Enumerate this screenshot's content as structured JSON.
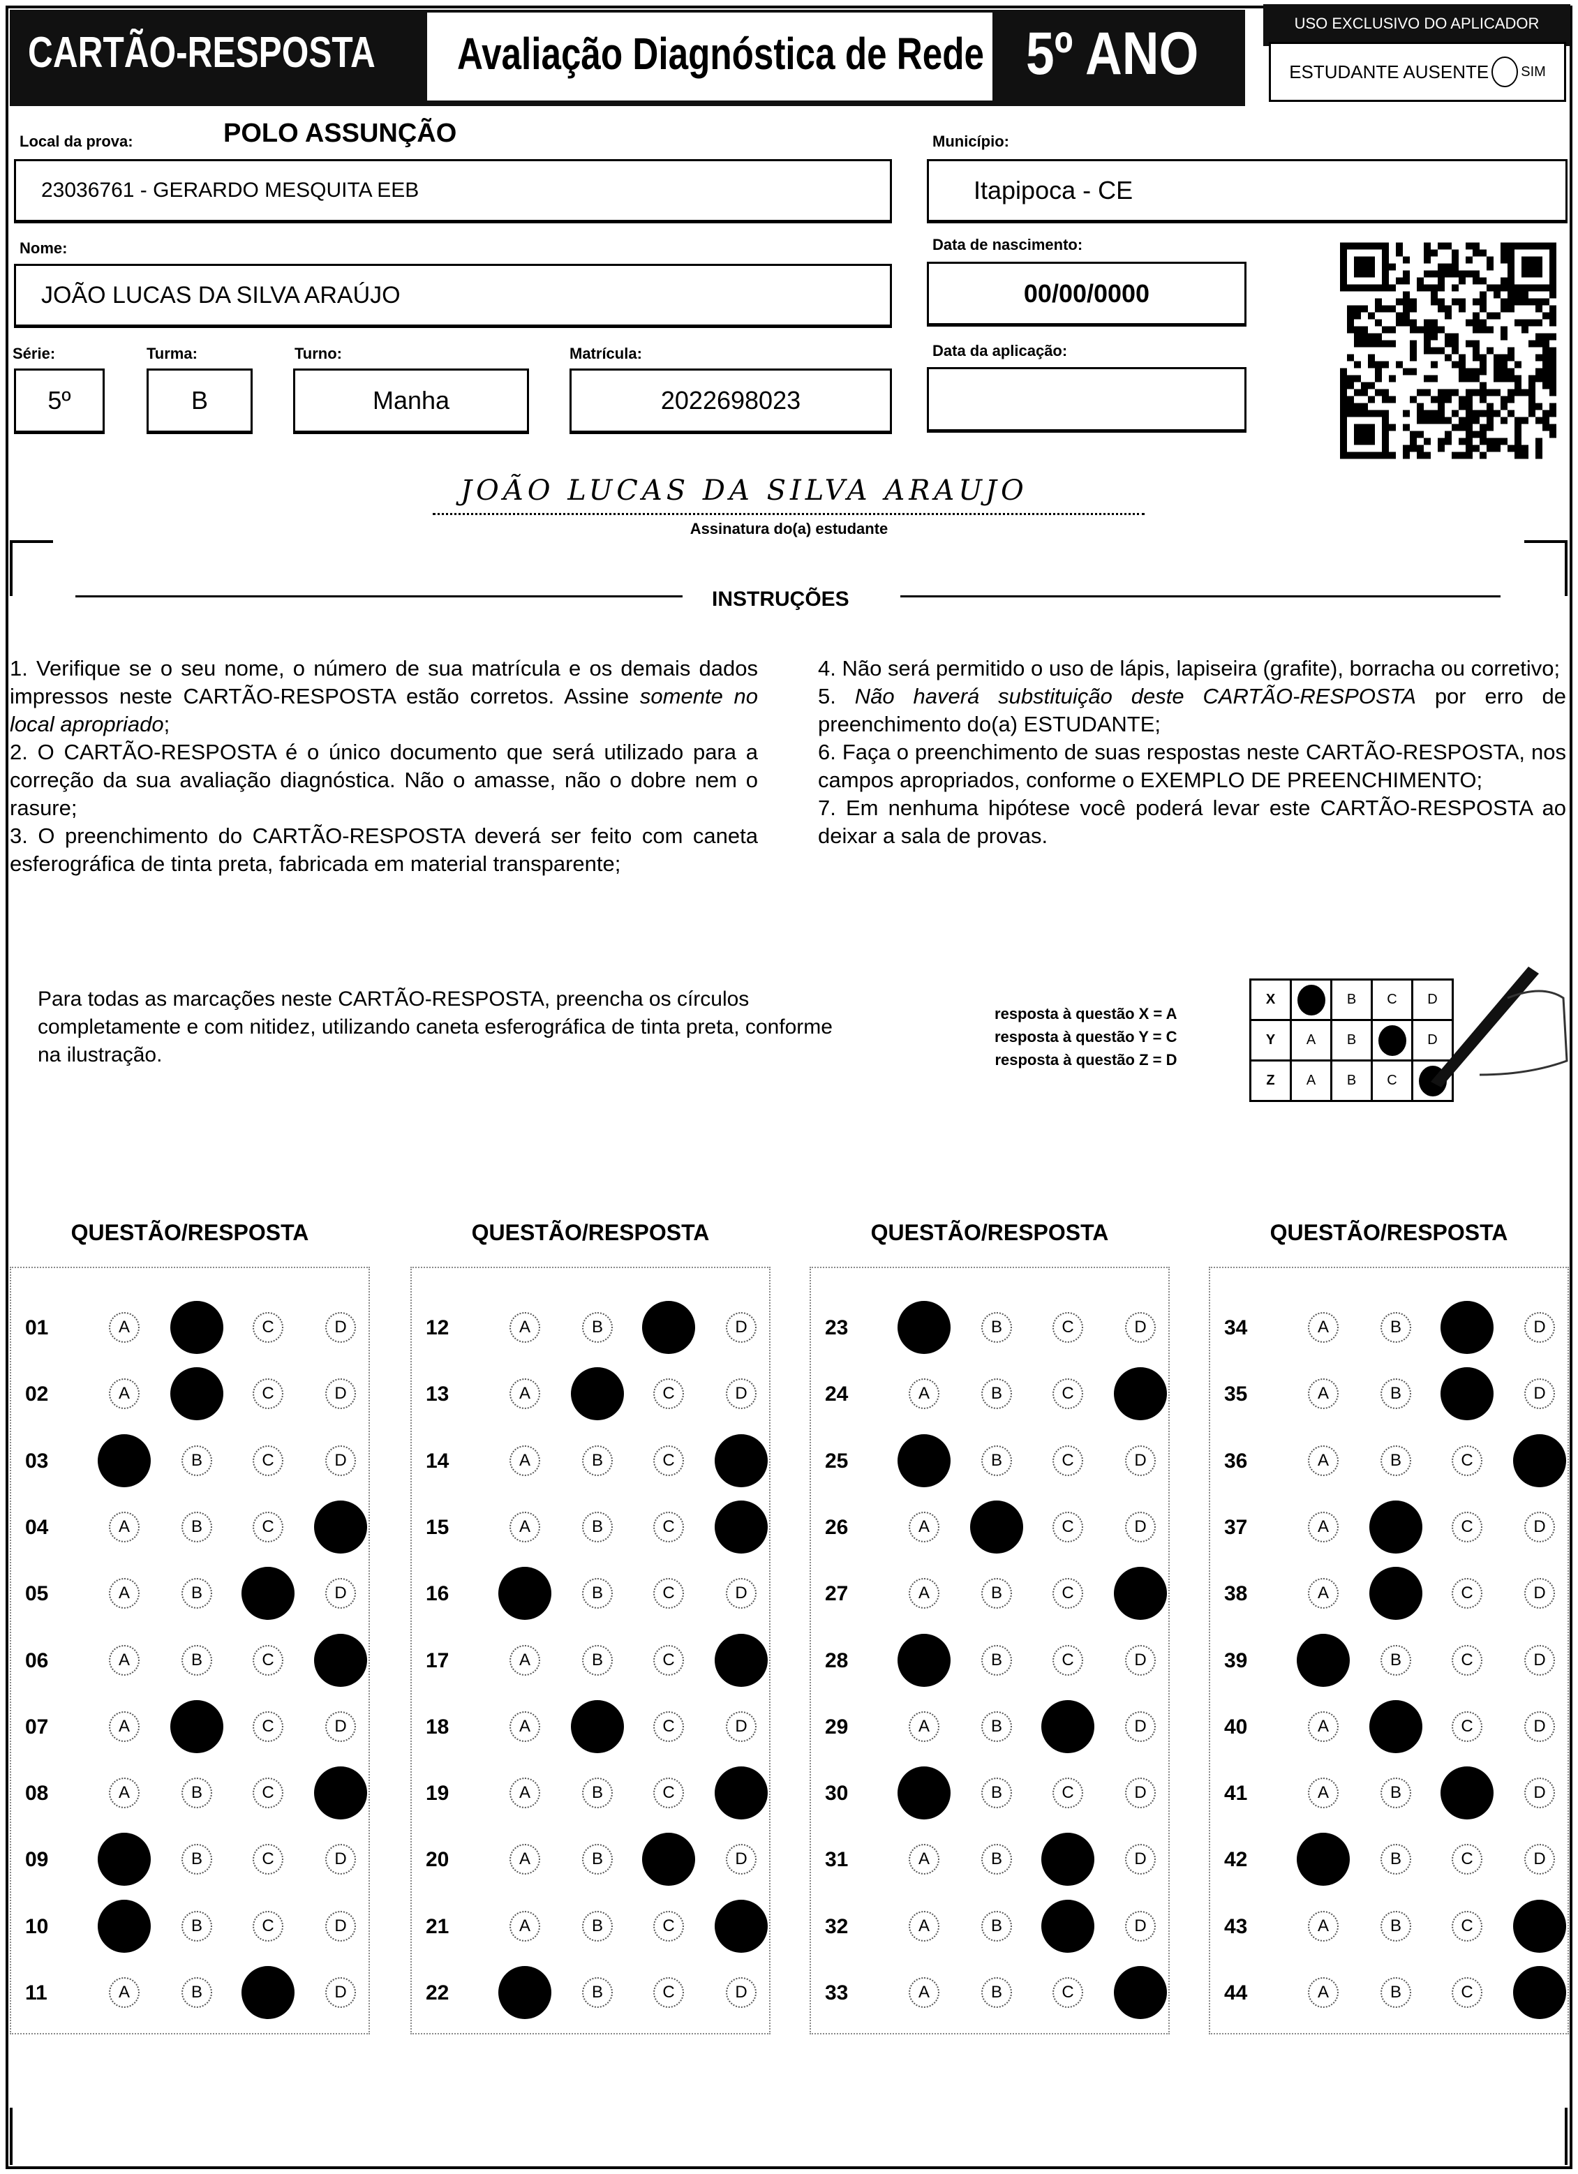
{
  "header": {
    "title": "CARTÃO-RESPOSTA",
    "subtitle": "Avaliação Diagnóstica de Rede",
    "year": "5º ANO"
  },
  "aplicador": {
    "heading": "USO EXCLUSIVO DO APLICADOR",
    "absent_label": "ESTUDANTE AUSENTE",
    "yes_label": "SIM"
  },
  "fields": {
    "local_label": "Local da prova:",
    "polo": "POLO ASSUNÇÃO",
    "local_value": "23036761 - GERARDO MESQUITA EEB",
    "municipio_label": "Município:",
    "municipio_value": "Itapipoca - CE",
    "nome_label": "Nome:",
    "nome_value": "JOÃO LUCAS DA SILVA ARAÚJO",
    "nascimento_label": "Data de nascimento:",
    "nascimento_value": "00/00/0000",
    "serie_label": "Série:",
    "serie_value": "5º",
    "turma_label": "Turma:",
    "turma_value": "B",
    "turno_label": "Turno:",
    "turno_value": "Manha",
    "matricula_label": "Matrícula:",
    "matricula_value": "2022698023",
    "aplicacao_label": "Data da aplicação:",
    "aplicacao_value": ""
  },
  "signature": {
    "handwritten": "JOÃO LUCAS DA SILVA ARAUJO",
    "label": "Assinatura do(a) estudante"
  },
  "instructions": {
    "title": "INSTRUÇÕES",
    "left": [
      [
        {
          "t": "1. Verifique se o seu nome, o número de sua matrícula e os demais dados impressos neste CARTÃO-RESPOSTA estão corretos. Assine "
        },
        {
          "t": "somente no local apropriado",
          "i": true
        },
        {
          "t": ";"
        }
      ],
      [
        {
          "t": "2. O CARTÃO-RESPOSTA é o único documento que será utilizado para a correção da sua avaliação diagnóstica. Não o amasse, não o dobre nem o rasure;"
        }
      ],
      [
        {
          "t": "3. O preenchimento do CARTÃO-RESPOSTA deverá ser feito com caneta esferográfica de tinta preta, fabricada em material transparente;"
        }
      ]
    ],
    "right": [
      [
        {
          "t": "4. Não será permitido o uso de lápis, lapiseira (grafite), borracha ou corretivo;"
        }
      ],
      [
        {
          "t": "5. "
        },
        {
          "t": "Não haverá substituição deste CARTÃO-RESPOSTA",
          "i": true
        },
        {
          "t": " por erro de preenchimento do(a) ESTUDANTE;"
        }
      ],
      [
        {
          "t": "6. Faça o preenchimento de suas respostas neste CARTÃO-RESPOSTA, nos campos apropriados, conforme o EXEMPLO DE PREENCHIMENTO;"
        }
      ],
      [
        {
          "t": "7. Em nenhuma hipótese você poderá levar este CARTÃO-RESPOSTA ao deixar a sala de provas."
        }
      ]
    ]
  },
  "example": {
    "text": "Para todas as marcações neste CARTÃO-RESPOSTA, preencha os círculos completamente e com nitidez, utilizando caneta esferográfica de tinta preta, conforme na ilustração.",
    "answers": [
      "resposta à questão X = A",
      "resposta à questão Y = C",
      "resposta à questão Z = D"
    ],
    "rows": [
      {
        "q": "X",
        "mark": "A"
      },
      {
        "q": "Y",
        "mark": "C"
      },
      {
        "q": "Z",
        "mark": "D"
      }
    ]
  },
  "options": [
    "A",
    "B",
    "C",
    "D"
  ],
  "section_heading": "QUESTÃO/RESPOSTA",
  "columns": [
    [
      [
        "01",
        "B"
      ],
      [
        "02",
        "B"
      ],
      [
        "03",
        "A"
      ],
      [
        "04",
        "D"
      ],
      [
        "05",
        "C"
      ],
      [
        "06",
        "D"
      ],
      [
        "07",
        "B"
      ],
      [
        "08",
        "D"
      ],
      [
        "09",
        "A"
      ],
      [
        "10",
        "A"
      ],
      [
        "11",
        "C"
      ]
    ],
    [
      [
        "12",
        "C"
      ],
      [
        "13",
        "B"
      ],
      [
        "14",
        "D"
      ],
      [
        "15",
        "D"
      ],
      [
        "16",
        "A"
      ],
      [
        "17",
        "D"
      ],
      [
        "18",
        "B"
      ],
      [
        "19",
        "D"
      ],
      [
        "20",
        "C"
      ],
      [
        "21",
        "D"
      ],
      [
        "22",
        "A"
      ]
    ],
    [
      [
        "23",
        "A"
      ],
      [
        "24",
        "D"
      ],
      [
        "25",
        "A"
      ],
      [
        "26",
        "B"
      ],
      [
        "27",
        "D"
      ],
      [
        "28",
        "A"
      ],
      [
        "29",
        "C"
      ],
      [
        "30",
        "A"
      ],
      [
        "31",
        "C"
      ],
      [
        "32",
        "C"
      ],
      [
        "33",
        "D"
      ]
    ],
    [
      [
        "34",
        "C"
      ],
      [
        "35",
        "C"
      ],
      [
        "36",
        "D"
      ],
      [
        "37",
        "B"
      ],
      [
        "38",
        "B"
      ],
      [
        "39",
        "A"
      ],
      [
        "40",
        "B"
      ],
      [
        "41",
        "C"
      ],
      [
        "42",
        "A"
      ],
      [
        "43",
        "D"
      ],
      [
        "44",
        "D"
      ]
    ]
  ]
}
